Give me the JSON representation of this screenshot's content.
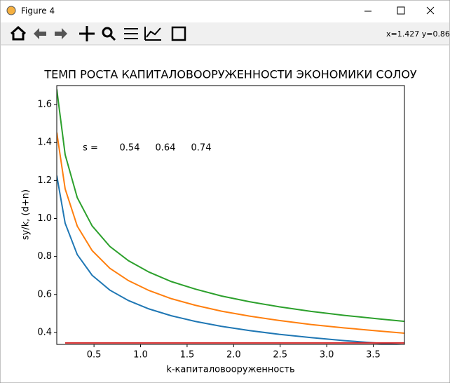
{
  "window": {
    "title": "Figure 4",
    "coords": "x=1.427 y=0.864"
  },
  "chart_data": {
    "type": "line",
    "title": "ТЕМП РОСТА КАПИТАЛОВООРУЖЕННОСТИ ЭКОНОМИКИ СОЛОУ",
    "x_label": "k-капиталовооруженность",
    "y_label": "sy/k, (d+n)",
    "annotations": [
      "s =",
      "0.54",
      "0.64",
      "0.74"
    ],
    "series": [
      {
        "color": "#1f77b4",
        "x": [
          0.1,
          0.19,
          0.32,
          0.48,
          0.67,
          0.87,
          1.09,
          1.33,
          1.59,
          1.87,
          2.17,
          2.49,
          2.83,
          3.19,
          3.57,
          3.84
        ],
        "values": [
          1.226,
          0.975,
          0.81,
          0.701,
          0.623,
          0.568,
          0.524,
          0.488,
          0.458,
          0.432,
          0.41,
          0.39,
          0.373,
          0.357,
          0.343,
          0.334
        ]
      },
      {
        "color": "#ff7f0e",
        "x": [
          0.1,
          0.19,
          0.32,
          0.48,
          0.67,
          0.87,
          1.09,
          1.33,
          1.59,
          1.87,
          2.17,
          2.49,
          2.83,
          3.19,
          3.57,
          3.84
        ],
        "values": [
          1.453,
          1.156,
          0.96,
          0.831,
          0.738,
          0.673,
          0.621,
          0.578,
          0.543,
          0.512,
          0.486,
          0.463,
          0.442,
          0.424,
          0.407,
          0.396
        ]
      },
      {
        "color": "#2ca02c",
        "x": [
          0.1,
          0.19,
          0.32,
          0.48,
          0.67,
          0.87,
          1.09,
          1.33,
          1.59,
          1.87,
          2.17,
          2.49,
          2.83,
          3.19,
          3.57,
          3.84
        ],
        "values": [
          1.68,
          1.336,
          1.11,
          0.961,
          0.853,
          0.778,
          0.718,
          0.668,
          0.628,
          0.592,
          0.562,
          0.535,
          0.511,
          0.49,
          0.471,
          0.458
        ]
      },
      {
        "color": "#d62728",
        "x": [
          0.19,
          3.84
        ],
        "values": [
          0.345,
          0.345
        ]
      }
    ],
    "xlim": [
      0.1,
      3.835
    ],
    "xticks": [
      0.5,
      {
        "value": 1,
        "label": "1.0"
      },
      1.5,
      {
        "value": 2,
        "label": "2.0"
      },
      2.5,
      {
        "value": 3,
        "label": "3.0"
      },
      3.5
    ],
    "ylim": [
      0.337,
      1.7
    ],
    "yticks": [
      0.4,
      0.6,
      0.8,
      {
        "value": 1,
        "label": "1.0"
      },
      1.2,
      1.4,
      1.6
    ],
    "grid": false
  }
}
